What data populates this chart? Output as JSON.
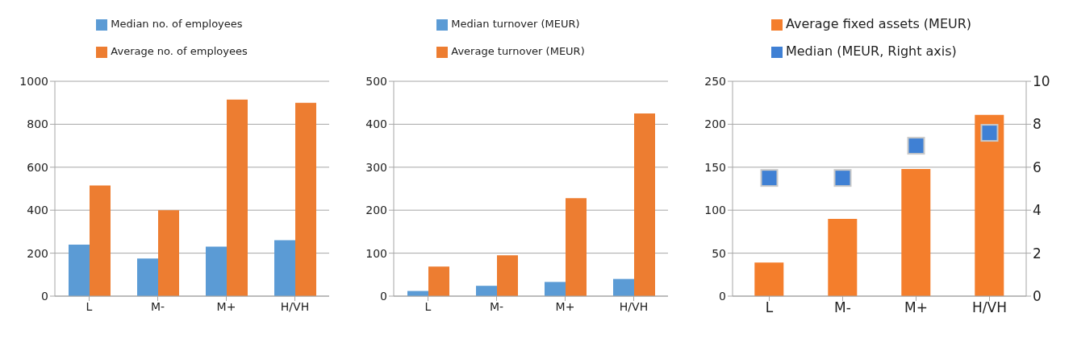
{
  "chart_data": [
    {
      "type": "bar",
      "categories": [
        "L",
        "M-",
        "M+",
        "H/VH"
      ],
      "series": [
        {
          "name": "Median no. of employees",
          "color": "#5b9bd5",
          "values": [
            240,
            175,
            230,
            260
          ]
        },
        {
          "name": "Average no. of employees",
          "color": "#ed7d31",
          "values": [
            515,
            400,
            915,
            900
          ]
        }
      ],
      "ylim": [
        0,
        1000
      ],
      "yticks": [
        0,
        200,
        400,
        600,
        800,
        1000
      ],
      "grid": "y",
      "legend": "top"
    },
    {
      "type": "bar",
      "categories": [
        "L",
        "M-",
        "M+",
        "H/VH"
      ],
      "series": [
        {
          "name": "Median turnover (MEUR)",
          "color": "#5b9bd5",
          "values": [
            12,
            24,
            33,
            40
          ]
        },
        {
          "name": "Average turnover (MEUR)",
          "color": "#ed7d31",
          "values": [
            69,
            95,
            228,
            425
          ]
        }
      ],
      "ylim": [
        0,
        500
      ],
      "yticks": [
        0,
        100,
        200,
        300,
        400,
        500
      ],
      "grid": "y",
      "legend": "top"
    },
    {
      "type": "bar",
      "categories": [
        "L",
        "M-",
        "M+",
        "H/VH"
      ],
      "series": [
        {
          "name": "Average fixed assets (MEUR)",
          "color": "#f47e2c",
          "values": [
            39,
            90,
            148,
            211
          ]
        },
        {
          "name": "Median (MEUR, Right axis)",
          "type": "scatter",
          "axis": "y2",
          "marker": "square",
          "color": "#3f80d4",
          "values": [
            5.5,
            5.5,
            7.0,
            7.6
          ]
        }
      ],
      "ylim": [
        0,
        250
      ],
      "yticks": [
        0,
        50,
        100,
        150,
        200,
        250
      ],
      "y2lim": [
        0,
        10
      ],
      "y2ticks": [
        0,
        2,
        4,
        6,
        8,
        10
      ],
      "grid": "y",
      "legend": "top"
    }
  ]
}
